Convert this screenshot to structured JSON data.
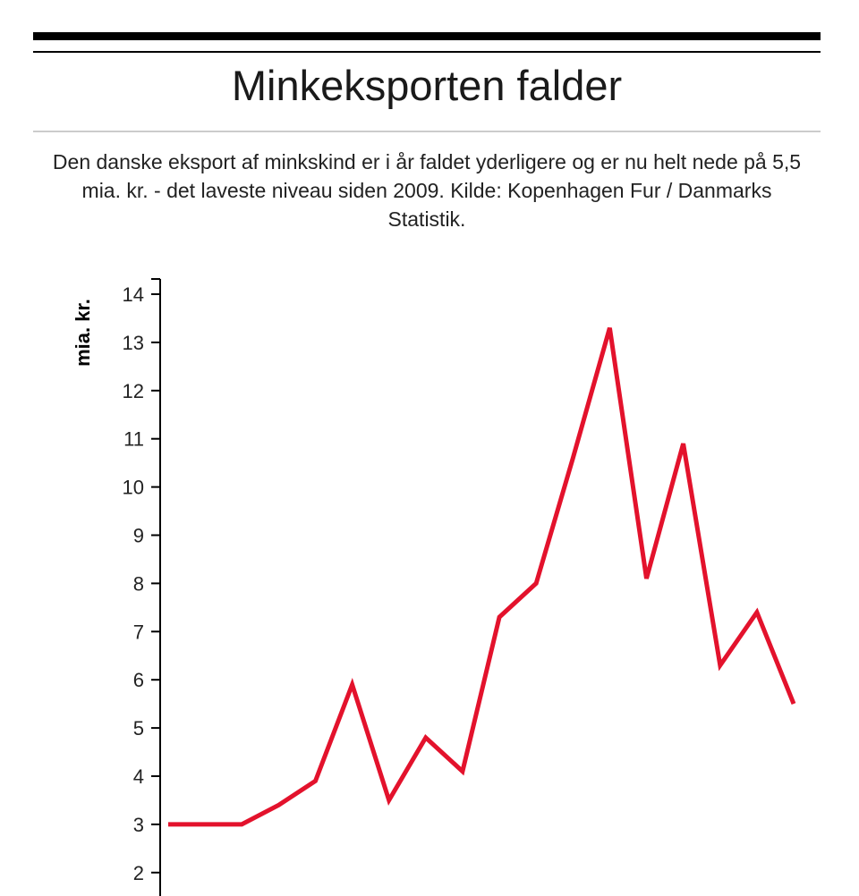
{
  "header": {
    "title": "Minkeksporten falder",
    "subtitle": "Den danske eksport af minkskind er i år faldet yderligere og er nu helt nede på 5,5 mia. kr. - det laveste niveau siden 2009. Kilde: Kopenhagen Fur / Danmarks Statistik."
  },
  "chart_data": {
    "type": "line",
    "title": "Minkeksporten falder",
    "ylabel": "mia. kr.",
    "xlabel": "",
    "ylim": [
      2,
      14
    ],
    "yticks": [
      2,
      3,
      4,
      5,
      6,
      7,
      8,
      9,
      10,
      11,
      12,
      13,
      14
    ],
    "grid": false,
    "color": "#e3122c",
    "series": [
      {
        "values": [
          3.0,
          3.0,
          3.0,
          3.4,
          3.9,
          5.9,
          3.5,
          4.8,
          4.1,
          7.3,
          8.0,
          10.6,
          13.3,
          8.1,
          10.9,
          6.3,
          7.4,
          5.5
        ]
      }
    ]
  }
}
